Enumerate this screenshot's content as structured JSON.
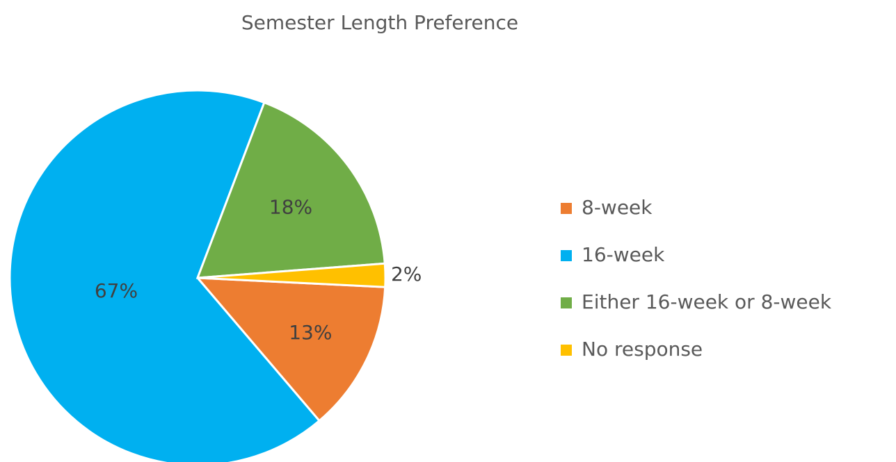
{
  "chart_data": {
    "type": "pie",
    "title": "Semester Length Preference",
    "categories": [
      "8-week",
      "16-week",
      "Either 16-week or 8-week",
      "No response"
    ],
    "values": [
      13,
      67,
      18,
      2
    ],
    "value_labels": [
      "13%",
      "67%",
      "18%",
      "2%"
    ],
    "colors": [
      "#ed7d31",
      "#00b0f0",
      "#70ad47",
      "#ffc000"
    ],
    "legend": "right"
  }
}
